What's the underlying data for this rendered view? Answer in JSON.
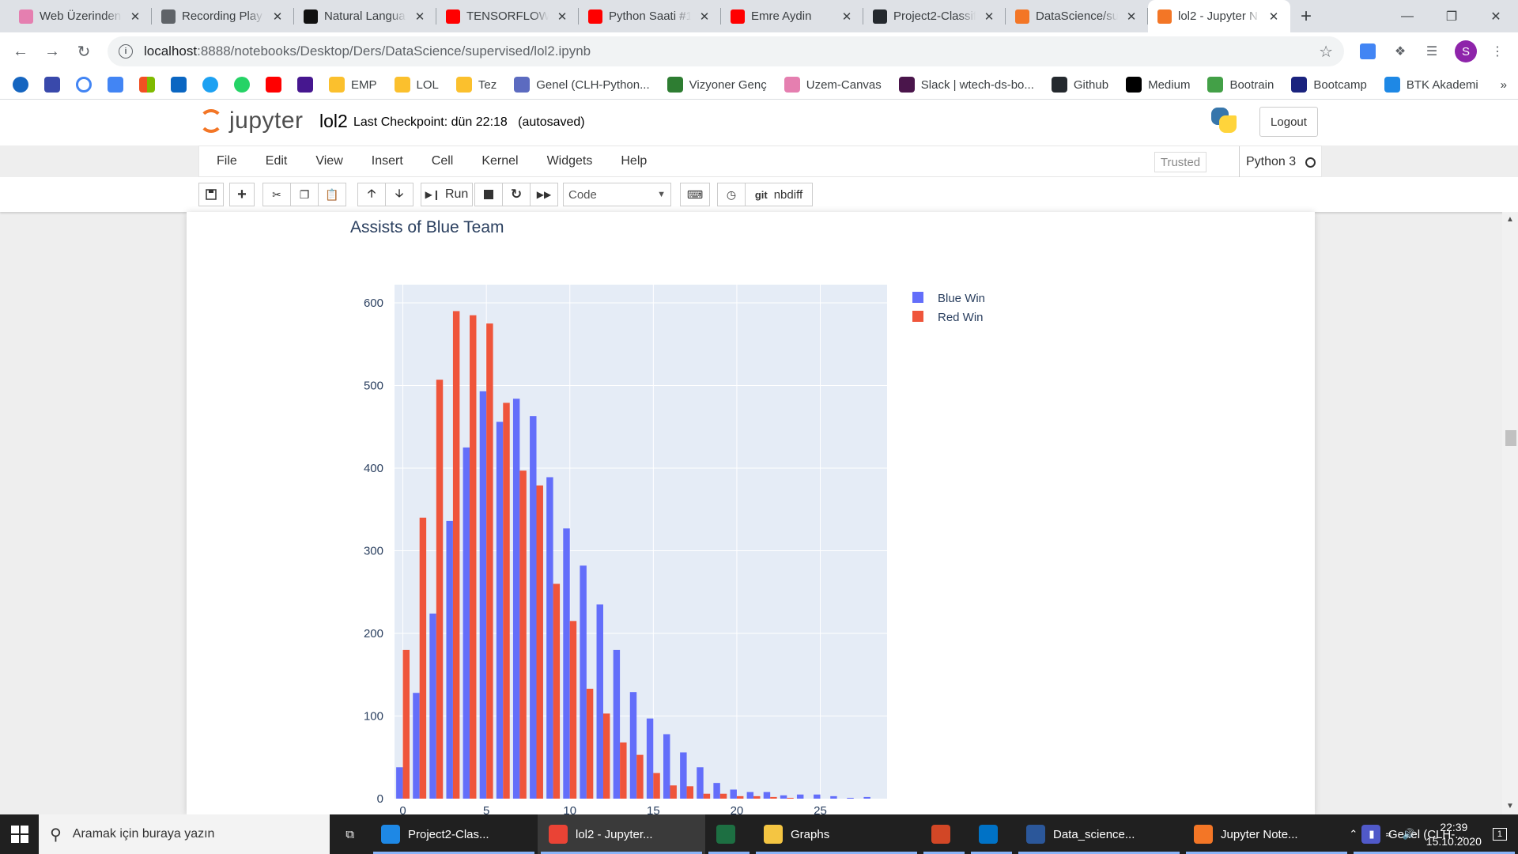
{
  "browser": {
    "tabs": [
      {
        "label": "Web Üzerinden",
        "color": "#e57fb0"
      },
      {
        "label": "Recording Play",
        "color": "#5f6368"
      },
      {
        "label": "Natural Langua",
        "color": "#111111"
      },
      {
        "label": "TENSORFLOW",
        "color": "#ff0000"
      },
      {
        "label": "Python Saati #1",
        "color": "#ff0000"
      },
      {
        "label": "Emre Aydin",
        "color": "#ff0000"
      },
      {
        "label": "Project2-Classif",
        "color": "#24292e"
      },
      {
        "label": "DataScience/su",
        "color": "#f37626"
      },
      {
        "label": "lol2 - Jupyter N",
        "color": "#f37626"
      }
    ],
    "url_host": "localhost",
    "url_path": ":8888/notebooks/Desktop/Ders/DataScience/supervised/lol2.ipynb",
    "avatar_letter": "S",
    "bookmarks": [
      "EMP",
      "LOL",
      "Tez",
      "Genel (CLH-Python...",
      "Vizyoner Genç",
      "Uzem-Canvas",
      "Slack | wtech-ds-bo...",
      "Github",
      "Medium",
      "Bootrain",
      "Bootcamp",
      "BTK Akademi"
    ],
    "bookmark_more": "»"
  },
  "jupyter": {
    "logo_text": "jupyter",
    "notebook_name": "lol2",
    "checkpoint": "Last Checkpoint: dün 22:18   (autosaved)",
    "logout": "Logout",
    "menu": [
      "File",
      "Edit",
      "View",
      "Insert",
      "Cell",
      "Kernel",
      "Widgets",
      "Help"
    ],
    "trusted": "Trusted",
    "kernel_name": "Python 3",
    "toolbar": {
      "run": "Run",
      "cell_type": "Code",
      "nbdiff": "nbdiff",
      "git": "git"
    }
  },
  "chart_data": {
    "type": "bar",
    "title": "Assists of Blue Team",
    "xlabel": "",
    "ylabel": "",
    "xlim": [
      -0.5,
      29
    ],
    "ylim": [
      0,
      600
    ],
    "xticks": [
      0,
      5,
      10,
      15,
      20,
      25
    ],
    "yticks": [
      0,
      100,
      200,
      300,
      400,
      500,
      600
    ],
    "legend_position": "top-right outside",
    "grid": true,
    "x": [
      0,
      1,
      2,
      3,
      4,
      5,
      6,
      7,
      8,
      9,
      10,
      11,
      12,
      13,
      14,
      15,
      16,
      17,
      18,
      19,
      20,
      21,
      22,
      23,
      24,
      25,
      26,
      27,
      28
    ],
    "series": [
      {
        "name": "Blue Win",
        "color": "#636efa",
        "values": [
          38,
          128,
          224,
          336,
          425,
          493,
          456,
          484,
          463,
          389,
          327,
          282,
          235,
          180,
          129,
          97,
          78,
          56,
          38,
          19,
          11,
          8,
          8,
          4,
          5,
          5,
          3,
          1,
          2
        ]
      },
      {
        "name": "Red Win",
        "color": "#ef553b",
        "values": [
          180,
          340,
          507,
          590,
          585,
          575,
          479,
          397,
          379,
          260,
          215,
          133,
          103,
          68,
          53,
          31,
          16,
          15,
          6,
          6,
          3,
          3,
          2,
          1,
          0,
          0,
          0,
          0,
          0
        ]
      }
    ]
  },
  "taskbar": {
    "search_placeholder": "Aramak için buraya yazın",
    "apps": [
      {
        "label": "Project2-Clas...",
        "color": "#1e88e5"
      },
      {
        "label": "lol2 - Jupyter...",
        "color": "#ea4335"
      },
      {
        "label": "",
        "color": "#1d6f42"
      },
      {
        "label": "Graphs",
        "color": "#f4c542"
      },
      {
        "label": "",
        "color": "#d24726"
      },
      {
        "label": "",
        "color": "#0072c6"
      },
      {
        "label": "Data_science...",
        "color": "#2b579a"
      },
      {
        "label": "Jupyter Note...",
        "color": "#f37626"
      },
      {
        "label": "Genel (CLH-...",
        "color": "#5059c9"
      }
    ],
    "time": "22:39",
    "date": "15.10.2020",
    "notif_count": "1"
  }
}
